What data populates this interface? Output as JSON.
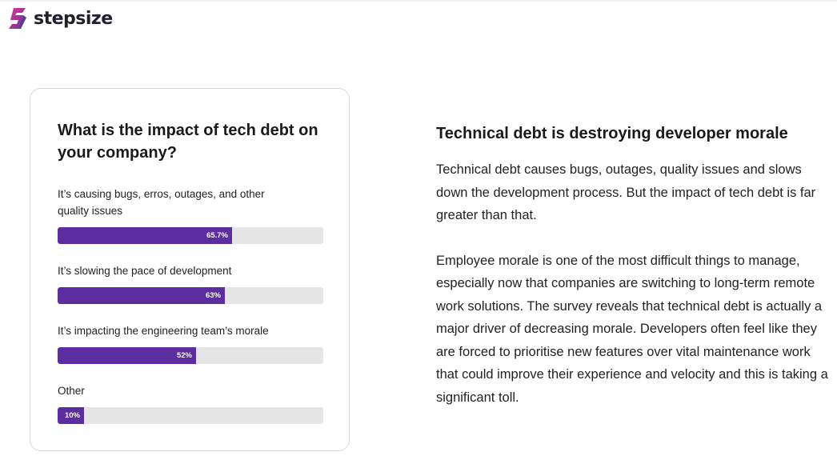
{
  "brand": {
    "name": "stepsize",
    "accent_color": "#5b2d9e",
    "logo_icon": "stepsize-logo-icon"
  },
  "card": {
    "title": "What is the impact of tech debt on your company?"
  },
  "chart_data": {
    "type": "bar",
    "orientation": "horizontal",
    "title": "What is the impact of tech debt on your company?",
    "categories": [
      "It’s causing bugs, erros, outages, and other quality issues",
      "It’s slowing the pace of development",
      "It’s impacting the engineering team’s morale",
      "Other"
    ],
    "values": [
      65.7,
      63,
      52,
      10
    ],
    "value_labels": [
      "65.7%",
      "63%",
      "52%",
      "10%"
    ],
    "xlim": [
      0,
      100
    ],
    "bar_color": "#5b2d9e",
    "track_color": "#e5e5e5",
    "grid": false,
    "legend": "none"
  },
  "article": {
    "heading": "Technical debt is destroying developer morale",
    "paragraph_1": "Technical debt causes bugs, outages, quality issues and slows down the development process. But the impact of tech debt is far greater than that.",
    "paragraph_2": "Employee morale is one of the most difficult things to manage, especially now that companies are switching to long-term remote work solutions. The survey reveals that technical debt is actually a major driver of decreasing morale. Developers often feel like they are forced to prioritise new features over vital maintenance work that could improve their experience and velocity and this is taking a significant toll."
  }
}
